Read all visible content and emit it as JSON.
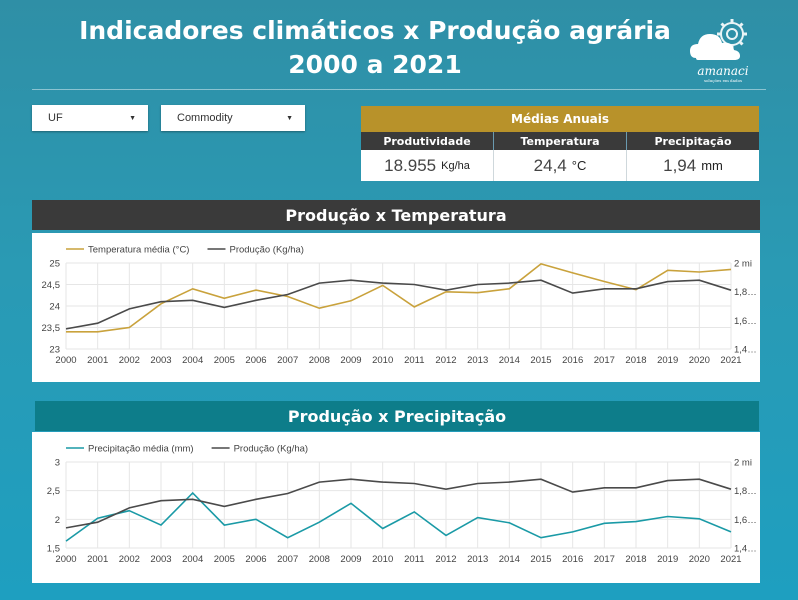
{
  "header": {
    "title_line1": "Indicadores climáticos  x  Produção agrária",
    "title_line2": "2000 a 2021",
    "logo_text": "amanaci",
    "logo_tagline": "soluções em dados"
  },
  "filters": {
    "uf_label": "UF",
    "commodity_label": "Commodity"
  },
  "kpis": {
    "title": "Médias Anuais",
    "headers": [
      "Produtividade",
      "Temperatura",
      "Precipitação"
    ],
    "values": [
      "18.955",
      "24,4",
      "1,94"
    ],
    "units": [
      "Kg/ha",
      "°C",
      "mm"
    ]
  },
  "colors": {
    "temperature": "#c9a23c",
    "precipitation": "#1a9aa6",
    "production": "#4a4a4a",
    "kpi_header": "#b8922a",
    "panel2_header": "#0d7d8a"
  },
  "panel1": {
    "title": "Produção x Temperatura"
  },
  "panel2": {
    "title": "Produção x Precipitação"
  },
  "chart_data": [
    {
      "type": "line",
      "title": "Produção x Temperatura",
      "x": [
        2000,
        2001,
        2002,
        2003,
        2004,
        2005,
        2006,
        2007,
        2008,
        2009,
        2010,
        2011,
        2012,
        2013,
        2014,
        2015,
        2016,
        2017,
        2018,
        2019,
        2020,
        2021
      ],
      "series": [
        {
          "name": "Temperatura média (°C)",
          "axis": "left",
          "values": [
            23.4,
            23.4,
            23.5,
            24.05,
            24.4,
            24.18,
            24.37,
            24.22,
            23.95,
            24.12,
            24.48,
            23.98,
            24.33,
            24.31,
            24.4,
            24.98,
            24.77,
            24.57,
            24.38,
            24.83,
            24.79,
            24.85
          ]
        },
        {
          "name": "Produção (Kg/ha)",
          "axis": "right",
          "values": [
            1.54,
            1.58,
            1.68,
            1.73,
            1.74,
            1.69,
            1.74,
            1.78,
            1.86,
            1.88,
            1.86,
            1.85,
            1.81,
            1.85,
            1.86,
            1.88,
            1.79,
            1.82,
            1.82,
            1.87,
            1.88,
            1.81
          ]
        }
      ],
      "left_ticks": [
        "25",
        "24,5",
        "24",
        "23,5",
        "23"
      ],
      "right_ticks": [
        "2 mi",
        "1,8…",
        "1,6…",
        "1,4…"
      ],
      "left_ylim": [
        23,
        25
      ],
      "right_ylim": [
        1.4,
        2.0
      ],
      "legend": "top-left",
      "grid": true
    },
    {
      "type": "line",
      "title": "Produção x Precipitação",
      "x": [
        2000,
        2001,
        2002,
        2003,
        2004,
        2005,
        2006,
        2007,
        2008,
        2009,
        2010,
        2011,
        2012,
        2013,
        2014,
        2015,
        2016,
        2017,
        2018,
        2019,
        2020,
        2021
      ],
      "series": [
        {
          "name": "Precipitação média (mm)",
          "axis": "left",
          "values": [
            1.62,
            2.02,
            2.15,
            1.9,
            2.46,
            1.9,
            2.0,
            1.68,
            1.95,
            2.28,
            1.84,
            2.13,
            1.72,
            2.03,
            1.94,
            1.68,
            1.78,
            1.93,
            1.96,
            2.05,
            2.01,
            1.78
          ]
        },
        {
          "name": "Produção (Kg/ha)",
          "axis": "right",
          "values": [
            1.54,
            1.58,
            1.68,
            1.73,
            1.74,
            1.69,
            1.74,
            1.78,
            1.86,
            1.88,
            1.86,
            1.85,
            1.81,
            1.85,
            1.86,
            1.88,
            1.79,
            1.82,
            1.82,
            1.87,
            1.88,
            1.81
          ]
        }
      ],
      "left_ticks": [
        "3",
        "2,5",
        "2",
        "1,5"
      ],
      "right_ticks": [
        "2 mi",
        "1,8…",
        "1,6…",
        "1,4…"
      ],
      "left_ylim": [
        1.5,
        3
      ],
      "right_ylim": [
        1.4,
        2.0
      ],
      "legend": "top-left",
      "grid": true
    }
  ]
}
